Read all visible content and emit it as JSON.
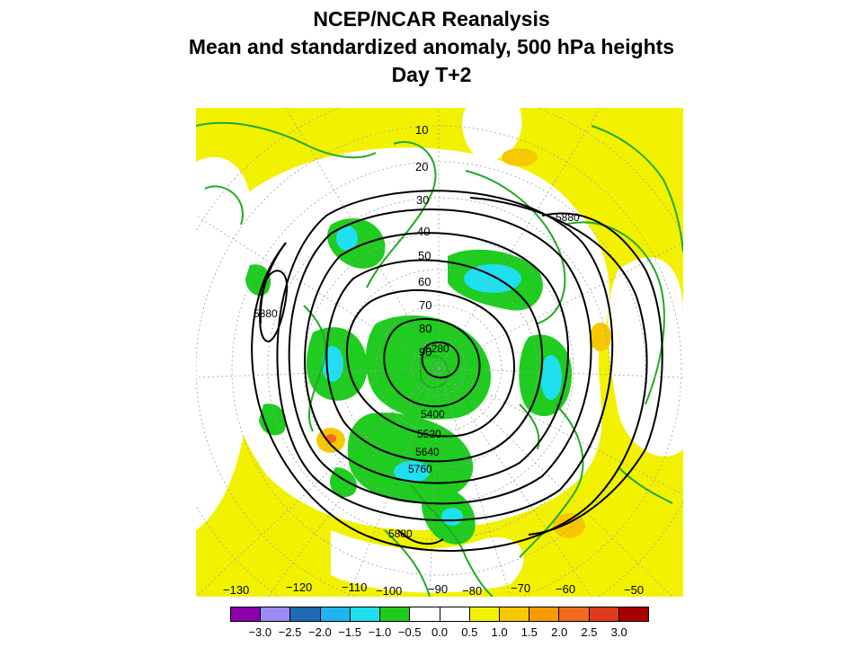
{
  "title": {
    "line1": "NCEP/NCAR Reanalysis",
    "line2": "Mean and standardized anomaly, 500 hPa heights",
    "line3": "Day T+2"
  },
  "map": {
    "projection": "polar stereographic, northern hemisphere",
    "latitude_labels": [
      "10",
      "20",
      "30",
      "40",
      "50",
      "60",
      "70",
      "80",
      "90"
    ],
    "longitude_labels": [
      "−130",
      "−120",
      "−110",
      "−100",
      "−90",
      "−80",
      "−70",
      "−60",
      "−50"
    ],
    "contour_labels": {
      "c5280": "5280",
      "c5400": "5400",
      "c5520": "5520",
      "c5640": "5640",
      "c5760": "5760",
      "c5880_left": "5880",
      "c5880_right": "5880",
      "c5880_bottom": "5880"
    },
    "colors": {
      "land": "#22aa22",
      "positive_anom": "#f2f200",
      "positive_strong": "#f7c800",
      "negative_anom": "#1fcc1f",
      "negative_strong": "#1ee0f0",
      "contour": "#000000"
    }
  },
  "colorbar": {
    "colors": [
      "#8b00aa",
      "#9b8bf0",
      "#1f6ab5",
      "#1fb4f0",
      "#1ee0f0",
      "#1fcc1f",
      "#ffffff",
      "#ffffff",
      "#f2f200",
      "#f7c800",
      "#f79a00",
      "#f06a1f",
      "#e03a1a",
      "#a80000"
    ],
    "labels": [
      "−3.0",
      "−2.5",
      "−2.0",
      "−1.5",
      "−1.0",
      "−0.5",
      "0.0",
      "0.5",
      "1.0",
      "1.5",
      "2.0",
      "2.5",
      "3.0"
    ]
  }
}
